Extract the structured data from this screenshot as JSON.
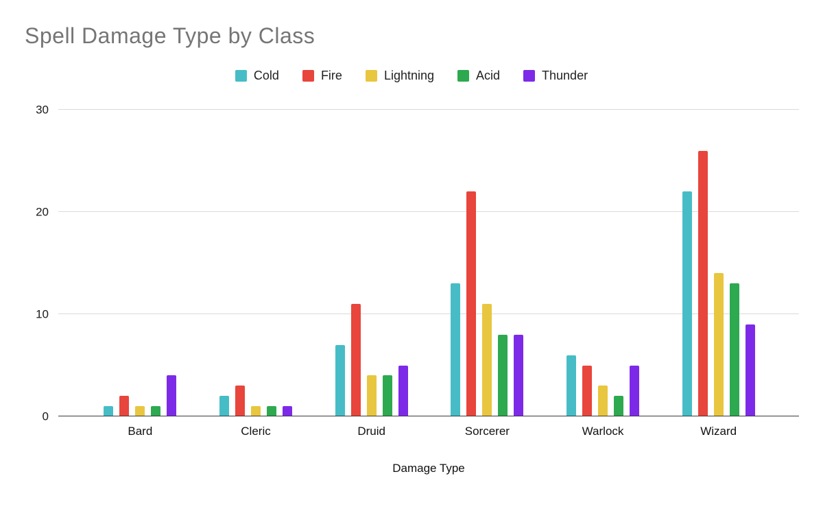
{
  "chart_data": {
    "type": "bar",
    "title": "Spell Damage Type by Class",
    "xlabel": "Damage Type",
    "ylabel": "",
    "ylim": [
      0,
      30
    ],
    "yticks": [
      0,
      10,
      20,
      30
    ],
    "grid": true,
    "legend_position": "top",
    "categories": [
      "Bard",
      "Cleric",
      "Druid",
      "Sorcerer",
      "Warlock",
      "Wizard"
    ],
    "series": [
      {
        "name": "Cold",
        "color": "#46bdc6",
        "values": [
          1,
          2,
          7,
          13,
          6,
          22
        ]
      },
      {
        "name": "Fire",
        "color": "#e8453c",
        "values": [
          2,
          3,
          11,
          22,
          5,
          26
        ]
      },
      {
        "name": "Lightning",
        "color": "#e8c63f",
        "values": [
          1,
          1,
          4,
          11,
          3,
          14
        ]
      },
      {
        "name": "Acid",
        "color": "#2da94f",
        "values": [
          1,
          1,
          4,
          8,
          2,
          13
        ]
      },
      {
        "name": "Thunder",
        "color": "#7d2ae8",
        "values": [
          4,
          1,
          5,
          8,
          5,
          9
        ]
      }
    ],
    "colors": {
      "title_text": "#757575",
      "axis_text": "#1a1a1a",
      "gridline": "#dadada",
      "baseline": "#3a3a3a",
      "background": "#ffffff"
    }
  }
}
